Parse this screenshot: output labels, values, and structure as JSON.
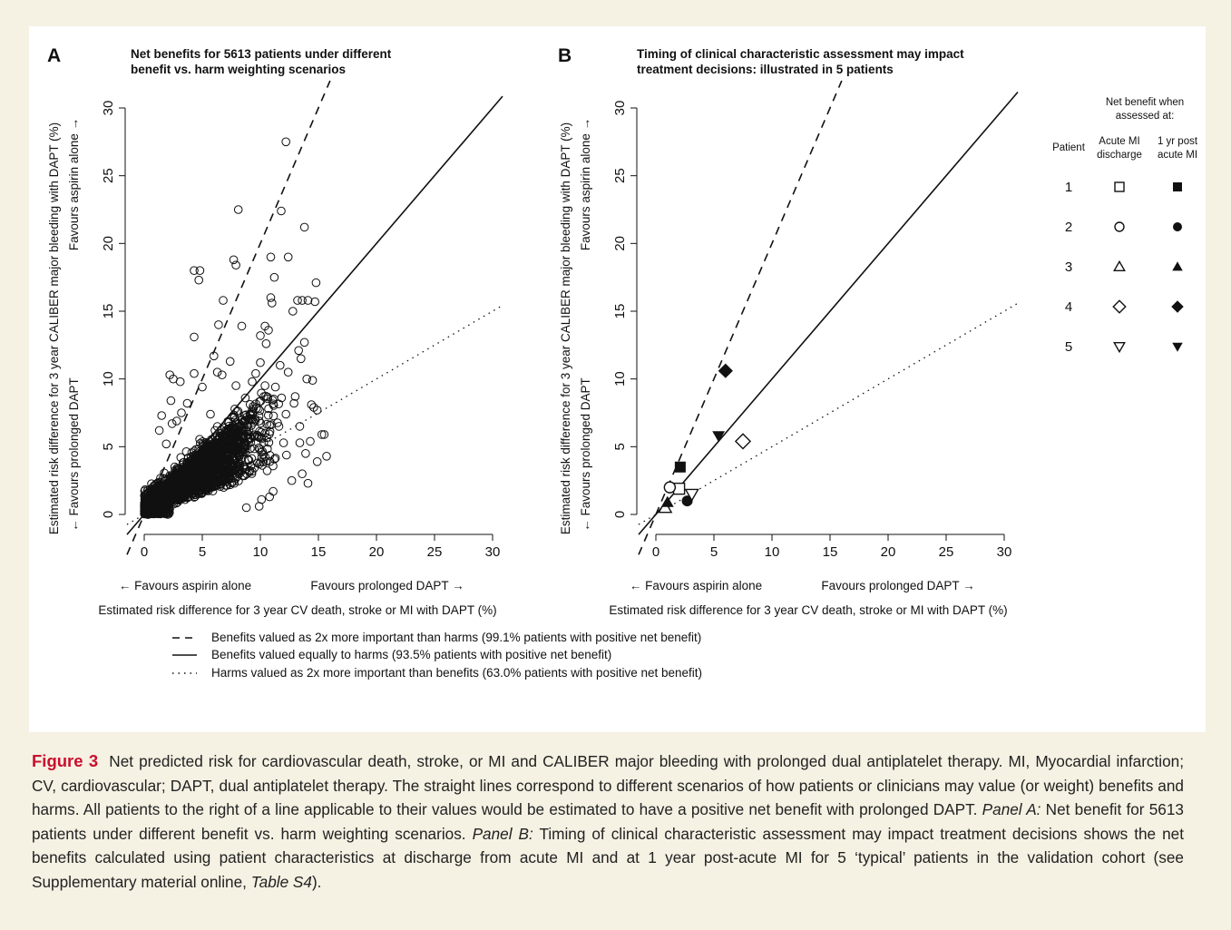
{
  "colors": {
    "page_background": "#f5f1e3",
    "figure_background": "#ffffff",
    "ink": "#111111",
    "figure_label": "#c8102e"
  },
  "chart_data": [
    {
      "panel": "A",
      "type": "scatter",
      "title_lines": [
        "Net benefits for 5613 patients under different",
        "benefit vs. harm weighting scenarios"
      ],
      "xlabel": "Estimated risk difference for 3 year CV death, stroke or MI with DAPT (%)",
      "x_direction_left": "← Favours aspirin alone",
      "x_direction_right": "Favours prolonged DAPT →",
      "ylabel": "Estimated risk difference for 3 year CALIBER major bleeding with DAPT (%)",
      "y_direction_bottom": "← Favours prolonged DAPT",
      "y_direction_top": "Favours aspirin alone →",
      "xlim": [
        0,
        30
      ],
      "ylim": [
        0,
        30
      ],
      "x_ticks": [
        0,
        5,
        10,
        15,
        20,
        25,
        30
      ],
      "y_ticks": [
        0,
        5,
        10,
        15,
        20,
        25,
        30
      ],
      "grid": false,
      "reference_lines": [
        {
          "style": "dashed",
          "slope": 2.0
        },
        {
          "style": "solid",
          "slope": 1.0
        },
        {
          "style": "dotted",
          "slope": 0.5
        }
      ],
      "points_total": 5613,
      "points": [
        [
          12.2,
          27.5
        ],
        [
          8.1,
          22.5
        ],
        [
          11.8,
          22.4
        ],
        [
          13.8,
          21.2
        ],
        [
          7.7,
          18.8
        ],
        [
          4.3,
          18.0
        ],
        [
          4.8,
          18.0
        ],
        [
          7.9,
          18.4
        ],
        [
          10.9,
          19.0
        ],
        [
          12.4,
          19.0
        ],
        [
          4.7,
          17.3
        ],
        [
          11.2,
          17.5
        ],
        [
          14.8,
          17.1
        ],
        [
          6.8,
          15.8
        ],
        [
          10.9,
          16.0
        ],
        [
          13.2,
          15.8
        ],
        [
          13.6,
          15.8
        ],
        [
          14.1,
          15.8
        ],
        [
          14.7,
          15.7
        ],
        [
          11.0,
          15.6
        ],
        [
          12.8,
          15.0
        ],
        [
          6.4,
          14.0
        ],
        [
          8.4,
          13.9
        ],
        [
          10.4,
          13.9
        ],
        [
          10.7,
          13.6
        ],
        [
          4.3,
          13.1
        ],
        [
          10.0,
          13.2
        ],
        [
          6.0,
          11.7
        ],
        [
          10.5,
          12.6
        ],
        [
          13.8,
          12.7
        ],
        [
          13.3,
          12.1
        ],
        [
          13.5,
          11.5
        ],
        [
          7.4,
          11.3
        ],
        [
          10.0,
          11.2
        ],
        [
          11.7,
          11.0
        ],
        [
          2.2,
          10.3
        ],
        [
          2.5,
          10.0
        ],
        [
          3.1,
          9.8
        ],
        [
          4.3,
          10.4
        ],
        [
          6.3,
          10.5
        ],
        [
          6.7,
          10.3
        ],
        [
          9.6,
          10.4
        ],
        [
          12.4,
          10.5
        ],
        [
          14.0,
          10.0
        ],
        [
          14.5,
          9.9
        ],
        [
          5.0,
          9.4
        ],
        [
          7.9,
          9.5
        ],
        [
          9.3,
          9.8
        ],
        [
          10.4,
          9.5
        ],
        [
          11.3,
          9.4
        ],
        [
          2.3,
          8.4
        ],
        [
          3.7,
          8.2
        ],
        [
          8.7,
          8.6
        ],
        [
          10.3,
          8.7
        ],
        [
          12.9,
          8.2
        ],
        [
          14.4,
          8.1
        ],
        [
          14.6,
          7.9
        ],
        [
          1.5,
          7.3
        ],
        [
          2.8,
          6.9
        ],
        [
          3.2,
          7.5
        ],
        [
          5.7,
          7.4
        ],
        [
          9.1,
          7.4
        ],
        [
          10.7,
          7.8
        ],
        [
          12.2,
          7.4
        ],
        [
          14.9,
          7.7
        ],
        [
          1.3,
          6.2
        ],
        [
          2.4,
          6.7
        ],
        [
          9.9,
          6.9
        ],
        [
          11.6,
          6.5
        ],
        [
          13.4,
          6.5
        ],
        [
          15.3,
          5.9
        ],
        [
          15.5,
          5.9
        ],
        [
          15.7,
          4.3
        ],
        [
          14.3,
          5.4
        ],
        [
          13.9,
          4.5
        ],
        [
          1.9,
          5.2
        ],
        [
          14.9,
          3.9
        ],
        [
          13.6,
          3.0
        ],
        [
          12.7,
          2.5
        ],
        [
          14.1,
          2.3
        ],
        [
          11.1,
          1.7
        ],
        [
          10.1,
          1.1
        ],
        [
          10.8,
          1.3
        ],
        [
          9.9,
          0.6
        ],
        [
          8.8,
          0.5
        ]
      ]
    },
    {
      "panel": "B",
      "type": "scatter",
      "title_lines": [
        "Timing of clinical characteristic assessment may impact",
        "treatment decisions: illustrated in 5 patients"
      ],
      "xlabel": "Estimated risk difference for 3 year CV death, stroke or MI with DAPT (%)",
      "x_direction_left": "← Favours aspirin alone",
      "x_direction_right": "Favours prolonged DAPT →",
      "ylabel": "Estimated risk difference for 3 year CALIBER major bleeding with DAPT (%)",
      "y_direction_bottom": "← Favours prolonged DAPT",
      "y_direction_top": "Favours aspirin alone →",
      "xlim": [
        0,
        30
      ],
      "ylim": [
        0,
        30
      ],
      "x_ticks": [
        0,
        5,
        10,
        15,
        20,
        25,
        30
      ],
      "y_ticks": [
        0,
        5,
        10,
        15,
        20,
        25,
        30
      ],
      "grid": false,
      "reference_lines": [
        {
          "style": "dashed",
          "slope": 2.0
        },
        {
          "style": "solid",
          "slope": 1.0
        },
        {
          "style": "dotted",
          "slope": 0.5
        }
      ],
      "legend": {
        "placement": "right",
        "header_lines": [
          "Net benefit when",
          "assessed at:"
        ],
        "col_patient": "Patient",
        "col_discharge_lines": [
          "Acute MI",
          "discharge"
        ],
        "col_1yr_lines": [
          "1 yr post",
          "acute MI"
        ]
      },
      "series": [
        {
          "patient": "1",
          "shape": "square",
          "discharge": [
            2.0,
            1.9
          ],
          "one_year": [
            2.1,
            3.5
          ]
        },
        {
          "patient": "2",
          "shape": "circle",
          "discharge": [
            1.2,
            2.0
          ],
          "one_year": [
            2.7,
            1.0
          ]
        },
        {
          "patient": "3",
          "shape": "triangle-up",
          "discharge": [
            0.8,
            0.5
          ],
          "one_year": [
            1.0,
            0.9
          ]
        },
        {
          "patient": "4",
          "shape": "diamond",
          "discharge": [
            7.5,
            5.4
          ],
          "one_year": [
            6.0,
            10.6
          ]
        },
        {
          "patient": "5",
          "shape": "triangle-down",
          "discharge": [
            3.1,
            1.5
          ],
          "one_year": [
            5.4,
            5.8
          ]
        }
      ]
    }
  ],
  "line_legend": [
    {
      "style": "dashed",
      "label": "Benefits valued as 2x more important than harms (99.1% patients with positive net benefit)"
    },
    {
      "style": "solid",
      "label": "Benefits valued equally to harms (93.5% patients with positive net benefit)"
    },
    {
      "style": "dotted",
      "label": "Harms valued as 2x more important than benefits (63.0% patients with positive net benefit)"
    }
  ],
  "caption": {
    "label": "Figure 3",
    "part1": "Net predicted risk for cardiovascular death, stroke, or MI and CALIBER major bleeding with prolonged dual antiplatelet therapy. MI, Myocardial infarction; CV, cardiovascular; DAPT, dual antiplatelet therapy. The straight lines correspond to different scenarios of how patients or clinicians may value (or weight) benefits and harms. All patients to the right of a line applicable to their values would be estimated to have a positive net benefit with prolonged DAPT.",
    "panel_a_label": "Panel A:",
    "panel_a_text": "Net benefit for 5613 patients under different benefit vs. harm weighting scenarios.",
    "panel_b_label": "Panel B:",
    "panel_b_text": "Timing of clinical characteristic assessment may impact treatment decisions shows the net benefits calculated using patient characteristics at discharge from acute MI and at 1 year post-acute MI for 5 ‘typical’ patients in the validation cohort (see Supplementary material online,",
    "table_ref": "Table S4",
    "closing": ")."
  }
}
